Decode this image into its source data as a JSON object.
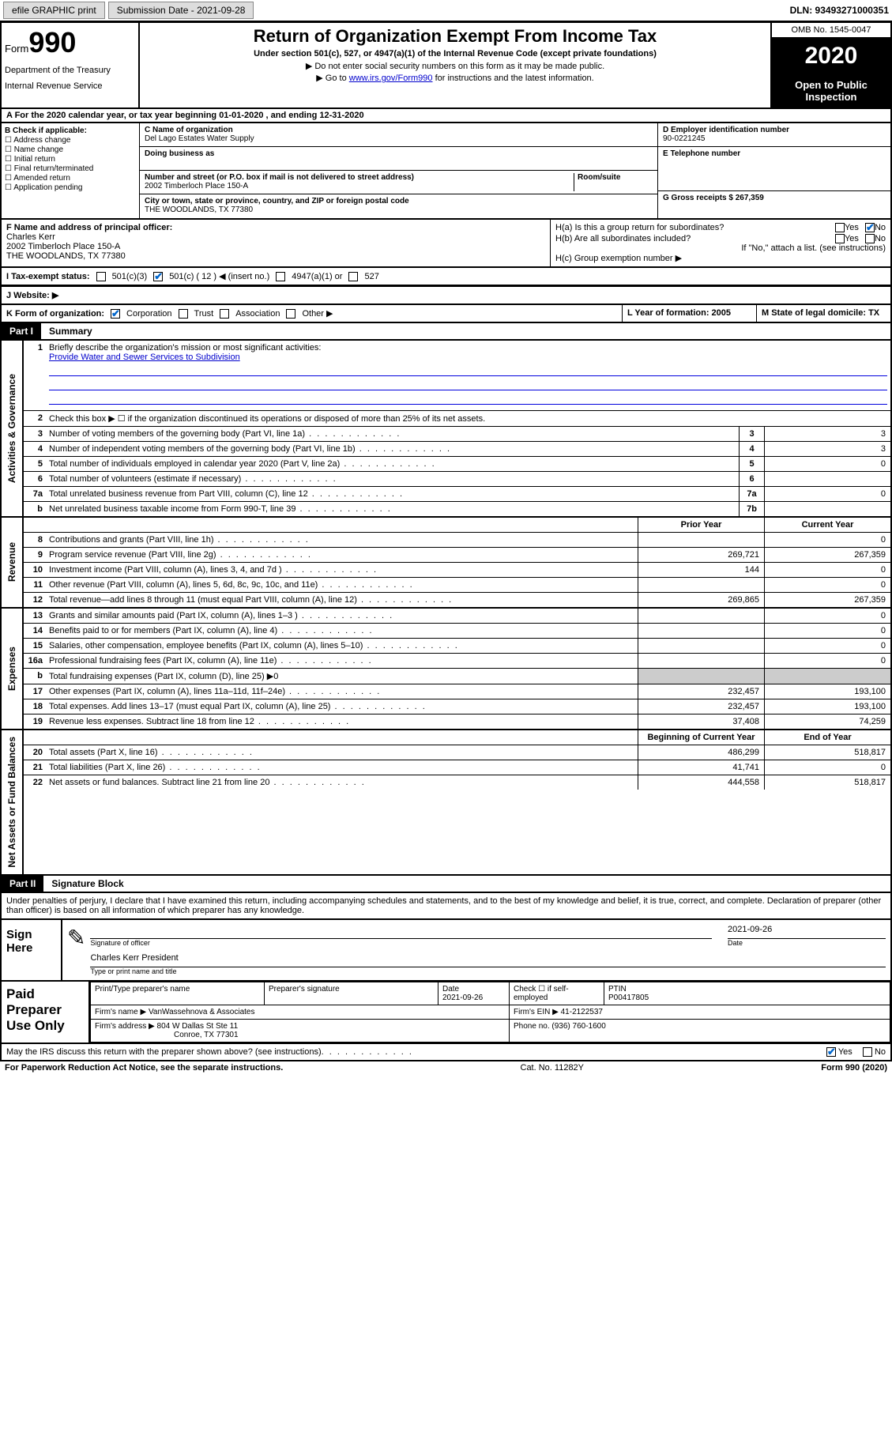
{
  "topbar": {
    "efile": "efile GRAPHIC print",
    "submission_label": "Submission Date - 2021-09-28",
    "dln": "DLN: 93493271000351"
  },
  "header": {
    "form_word": "Form",
    "form_num": "990",
    "dept1": "Department of the Treasury",
    "dept2": "Internal Revenue Service",
    "title": "Return of Organization Exempt From Income Tax",
    "subtitle": "Under section 501(c), 527, or 4947(a)(1) of the Internal Revenue Code (except private foundations)",
    "arrow1": "▶ Do not enter social security numbers on this form as it may be made public.",
    "arrow2_pre": "▶ Go to ",
    "arrow2_link": "www.irs.gov/Form990",
    "arrow2_post": " for instructions and the latest information.",
    "omb": "OMB No. 1545-0047",
    "year": "2020",
    "inspect": "Open to Public Inspection"
  },
  "line_a": "A For the 2020 calendar year, or tax year beginning 01-01-2020    , and ending 12-31-2020",
  "col_b": {
    "header": "B Check if applicable:",
    "items": [
      "Address change",
      "Name change",
      "Initial return",
      "Final return/terminated",
      "Amended return",
      "Application pending"
    ]
  },
  "col_c": {
    "name_lbl": "C Name of organization",
    "name": "Del Lago Estates Water Supply",
    "dba_lbl": "Doing business as",
    "addr_lbl": "Number and street (or P.O. box if mail is not delivered to street address)",
    "room_lbl": "Room/suite",
    "addr": "2002 Timberloch Place 150-A",
    "city_lbl": "City or town, state or province, country, and ZIP or foreign postal code",
    "city": "THE WOODLANDS, TX  77380"
  },
  "col_d": {
    "ein_lbl": "D Employer identification number",
    "ein": "90-0221245",
    "tel_lbl": "E Telephone number",
    "gross_lbl": "G Gross receipts $ 267,359"
  },
  "row_f": {
    "lbl": "F  Name and address of principal officer:",
    "name": "Charles Kerr",
    "addr1": "2002 Timberloch Place 150-A",
    "addr2": "THE WOODLANDS, TX  77380"
  },
  "row_h": {
    "ha": "H(a)  Is this a group return for subordinates?",
    "hb": "H(b)  Are all subordinates included?",
    "hb_note": "If \"No,\" attach a list. (see instructions)",
    "hc": "H(c)  Group exemption number ▶",
    "yes": "Yes",
    "no": "No"
  },
  "row_i": {
    "lbl": "I  Tax-exempt status:",
    "opts": [
      "501(c)(3)",
      "501(c) ( 12 ) ◀ (insert no.)",
      "4947(a)(1) or",
      "527"
    ]
  },
  "row_j": "J  Website: ▶",
  "row_k": {
    "lbl": "K Form of organization:",
    "opts": [
      "Corporation",
      "Trust",
      "Association",
      "Other ▶"
    ]
  },
  "row_l": "L Year of formation: 2005",
  "row_m": "M State of legal domicile: TX",
  "part1": {
    "num": "Part I",
    "title": "Summary",
    "vl1": "Activities & Governance",
    "vl2": "Revenue",
    "vl3": "Expenses",
    "vl4": "Net Assets or Fund Balances",
    "l1": "Briefly describe the organization's mission or most significant activities:",
    "l1_val": "Provide Water and Sewer Services to Subdivision",
    "l2": "Check this box ▶ ☐  if the organization discontinued its operations or disposed of more than 25% of its net assets.",
    "lines": [
      {
        "n": "3",
        "d": "Number of voting members of the governing body (Part VI, line 1a)",
        "b": "3",
        "v": "3"
      },
      {
        "n": "4",
        "d": "Number of independent voting members of the governing body (Part VI, line 1b)",
        "b": "4",
        "v": "3"
      },
      {
        "n": "5",
        "d": "Total number of individuals employed in calendar year 2020 (Part V, line 2a)",
        "b": "5",
        "v": "0"
      },
      {
        "n": "6",
        "d": "Total number of volunteers (estimate if necessary)",
        "b": "6",
        "v": ""
      },
      {
        "n": "7a",
        "d": "Total unrelated business revenue from Part VIII, column (C), line 12",
        "b": "7a",
        "v": "0"
      },
      {
        "n": "b",
        "d": "Net unrelated business taxable income from Form 990-T, line 39",
        "b": "7b",
        "v": ""
      }
    ],
    "hdr_prior": "Prior Year",
    "hdr_curr": "Current Year",
    "rev_lines": [
      {
        "n": "8",
        "d": "Contributions and grants (Part VIII, line 1h)",
        "p": "",
        "c": "0"
      },
      {
        "n": "9",
        "d": "Program service revenue (Part VIII, line 2g)",
        "p": "269,721",
        "c": "267,359"
      },
      {
        "n": "10",
        "d": "Investment income (Part VIII, column (A), lines 3, 4, and 7d )",
        "p": "144",
        "c": "0"
      },
      {
        "n": "11",
        "d": "Other revenue (Part VIII, column (A), lines 5, 6d, 8c, 9c, 10c, and 11e)",
        "p": "",
        "c": "0"
      },
      {
        "n": "12",
        "d": "Total revenue—add lines 8 through 11 (must equal Part VIII, column (A), line 12)",
        "p": "269,865",
        "c": "267,359"
      }
    ],
    "exp_lines": [
      {
        "n": "13",
        "d": "Grants and similar amounts paid (Part IX, column (A), lines 1–3 )",
        "p": "",
        "c": "0"
      },
      {
        "n": "14",
        "d": "Benefits paid to or for members (Part IX, column (A), line 4)",
        "p": "",
        "c": "0"
      },
      {
        "n": "15",
        "d": "Salaries, other compensation, employee benefits (Part IX, column (A), lines 5–10)",
        "p": "",
        "c": "0"
      },
      {
        "n": "16a",
        "d": "Professional fundraising fees (Part IX, column (A), line 11e)",
        "p": "",
        "c": "0"
      },
      {
        "n": "b",
        "d": "Total fundraising expenses (Part IX, column (D), line 25) ▶0",
        "shaded": true
      },
      {
        "n": "17",
        "d": "Other expenses (Part IX, column (A), lines 11a–11d, 11f–24e)",
        "p": "232,457",
        "c": "193,100"
      },
      {
        "n": "18",
        "d": "Total expenses. Add lines 13–17 (must equal Part IX, column (A), line 25)",
        "p": "232,457",
        "c": "193,100"
      },
      {
        "n": "19",
        "d": "Revenue less expenses. Subtract line 18 from line 12",
        "p": "37,408",
        "c": "74,259"
      }
    ],
    "hdr_beg": "Beginning of Current Year",
    "hdr_end": "End of Year",
    "net_lines": [
      {
        "n": "20",
        "d": "Total assets (Part X, line 16)",
        "p": "486,299",
        "c": "518,817"
      },
      {
        "n": "21",
        "d": "Total liabilities (Part X, line 26)",
        "p": "41,741",
        "c": "0"
      },
      {
        "n": "22",
        "d": "Net assets or fund balances. Subtract line 21 from line 20",
        "p": "444,558",
        "c": "518,817"
      }
    ]
  },
  "part2": {
    "num": "Part II",
    "title": "Signature Block",
    "declaration": "Under penalties of perjury, I declare that I have examined this return, including accompanying schedules and statements, and to the best of my knowledge and belief, it is true, correct, and complete. Declaration of preparer (other than officer) is based on all information of which preparer has any knowledge."
  },
  "sign": {
    "left": "Sign Here",
    "sig_lbl": "Signature of officer",
    "date": "2021-09-26",
    "date_lbl": "Date",
    "name": "Charles Kerr  President",
    "name_lbl": "Type or print name and title"
  },
  "prep": {
    "left": "Paid Preparer Use Only",
    "h1": "Print/Type preparer's name",
    "h2": "Preparer's signature",
    "h3": "Date",
    "date": "2021-09-26",
    "h4": "Check ☐  if self-employed",
    "h5": "PTIN",
    "ptin": "P00417805",
    "firm_name_lbl": "Firm's name    ▶",
    "firm_name": "VanWassehnova & Associates",
    "firm_ein_lbl": "Firm's EIN ▶",
    "firm_ein": "41-2122537",
    "firm_addr_lbl": "Firm's address ▶",
    "firm_addr1": "804 W Dallas St Ste 11",
    "firm_addr2": "Conroe, TX  77301",
    "phone_lbl": "Phone no.",
    "phone": "(936) 760-1600"
  },
  "footer": {
    "discuss": "May the IRS discuss this return with the preparer shown above? (see instructions)",
    "yes": "Yes",
    "no": "No",
    "paperwork": "For Paperwork Reduction Act Notice, see the separate instructions.",
    "cat": "Cat. No. 11282Y",
    "formno": "Form 990 (2020)"
  }
}
